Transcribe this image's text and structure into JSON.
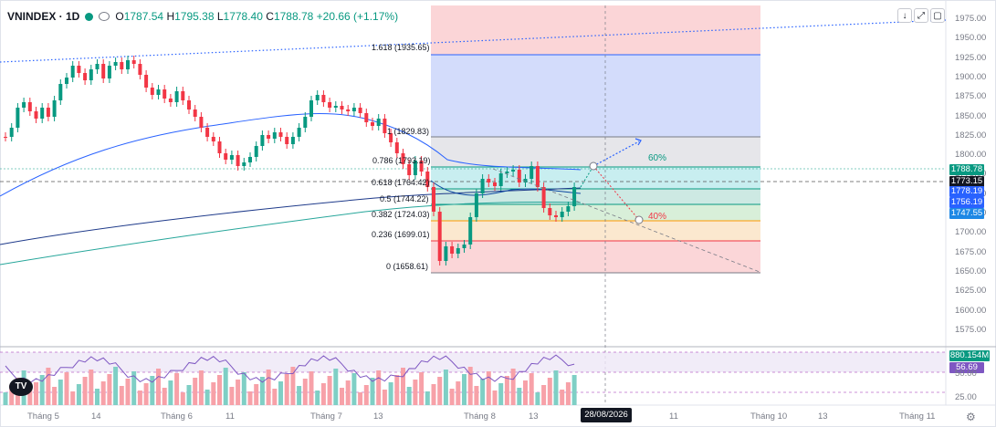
{
  "header": {
    "symbol": "VNINDEX · 1D",
    "open_label": "O",
    "open": "1787.54",
    "high_label": "H",
    "high": "1795.38",
    "low_label": "L",
    "low": "1778.40",
    "close_label": "C",
    "close": "1788.78",
    "change": "+20.66 (+1.17%)"
  },
  "toolbar": {
    "down": "↓",
    "fit": "⤢",
    "full": "▢"
  },
  "price_axis": [
    "1975.00",
    "1950.00",
    "1925.00",
    "1900.00",
    "1875.00",
    "1850.00",
    "1825.00",
    "1800.00",
    "1775.00",
    "1750.00",
    "1725.00",
    "1700.00",
    "1675.00",
    "1650.00",
    "1625.00",
    "1600.00",
    "1575.00"
  ],
  "price_tags": [
    {
      "value": "1788.78",
      "color": "#089981"
    },
    {
      "value": "1773.15",
      "color": "#131722"
    },
    {
      "value": "1778.19",
      "color": "#2962ff"
    },
    {
      "value": "1756.19",
      "color": "#2962ff"
    },
    {
      "value": "1747.55",
      "color": "#1e88e5"
    }
  ],
  "volume_panel": {
    "tag_volume": "880.154M",
    "tag_rsi": "56.69",
    "axis": [
      "50.00",
      "25.00"
    ]
  },
  "fib_levels": [
    {
      "label": "1.618 (1935.65)",
      "color": "#2962ff"
    },
    {
      "label": "1 (1829.83)",
      "color": "#787b86"
    },
    {
      "label": "0.786 (1793.19)",
      "color": "#089981"
    },
    {
      "label": "0.618 (1764.42)",
      "color": "#089981"
    },
    {
      "label": "0.5 (1744.22)",
      "color": "#089981"
    },
    {
      "label": "0.382 (1724.03)",
      "color": "#ff9800"
    },
    {
      "label": "0.236 (1699.01)",
      "color": "#f23645"
    },
    {
      "label": "0 (1658.61)",
      "color": "#787b86"
    }
  ],
  "scenarios": {
    "up": "60%",
    "down": "40%"
  },
  "time_axis": [
    {
      "label": "Tháng 5"
    },
    {
      "label": "14"
    },
    {
      "label": "Tháng 6"
    },
    {
      "label": "11"
    },
    {
      "label": "Tháng 7"
    },
    {
      "label": "13"
    },
    {
      "label": "Tháng 8"
    },
    {
      "label": "13"
    },
    {
      "label": "11"
    },
    {
      "label": "Tháng 10"
    },
    {
      "label": "13"
    },
    {
      "label": "Tháng 11"
    }
  ],
  "crosshair_date": "28/08/2026",
  "logo": "TV"
}
